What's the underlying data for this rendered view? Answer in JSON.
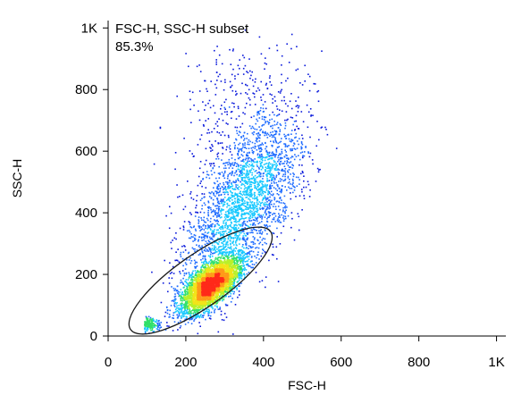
{
  "chart_data": {
    "type": "scatter",
    "title": "",
    "xlabel": "FSC-H",
    "ylabel": "SSC-H",
    "xlim": [
      0,
      1024
    ],
    "ylim": [
      0,
      1024
    ],
    "x_ticks": [
      {
        "value": 0,
        "label": "0"
      },
      {
        "value": 200,
        "label": "200"
      },
      {
        "value": 400,
        "label": "400"
      },
      {
        "value": 600,
        "label": "600"
      },
      {
        "value": 800,
        "label": "800"
      },
      {
        "value": 1000,
        "label": "1K"
      }
    ],
    "y_ticks": [
      {
        "value": 0,
        "label": "0"
      },
      {
        "value": 200,
        "label": "200"
      },
      {
        "value": 400,
        "label": "400"
      },
      {
        "value": 600,
        "label": "600"
      },
      {
        "value": 800,
        "label": "800"
      },
      {
        "value": 1000,
        "label": "1K"
      }
    ],
    "grid": false,
    "gate": {
      "shape": "ellipse",
      "name": "FSC-H, SSC-H subset",
      "percent": "85.3%",
      "center": [
        238,
        180
      ],
      "semi_axes": [
        220,
        85
      ],
      "rotation_deg": 35
    },
    "populations": [
      {
        "name": "main",
        "center": [
          262,
          168
        ],
        "sd_major": 52,
        "sd_minor": 23,
        "rotation_deg": 52,
        "count": 4200
      },
      {
        "name": "tail",
        "center": [
          345,
          420
        ],
        "sd_major": 150,
        "sd_minor": 55,
        "rotation_deg": 68,
        "count": 2600
      },
      {
        "name": "upper",
        "center": [
          340,
          700
        ],
        "sd_major": 130,
        "sd_minor": 70,
        "rotation_deg": 85,
        "count": 400
      },
      {
        "name": "debris",
        "center": [
          100,
          40
        ],
        "sd_major": 14,
        "sd_minor": 10,
        "rotation_deg": 0,
        "count": 260
      }
    ],
    "density_colors": [
      "#0a1adb",
      "#1f6cff",
      "#18c9ff",
      "#31e06a",
      "#b9f02a",
      "#f2e41a",
      "#ff9a1a",
      "#ff2a1a"
    ]
  }
}
